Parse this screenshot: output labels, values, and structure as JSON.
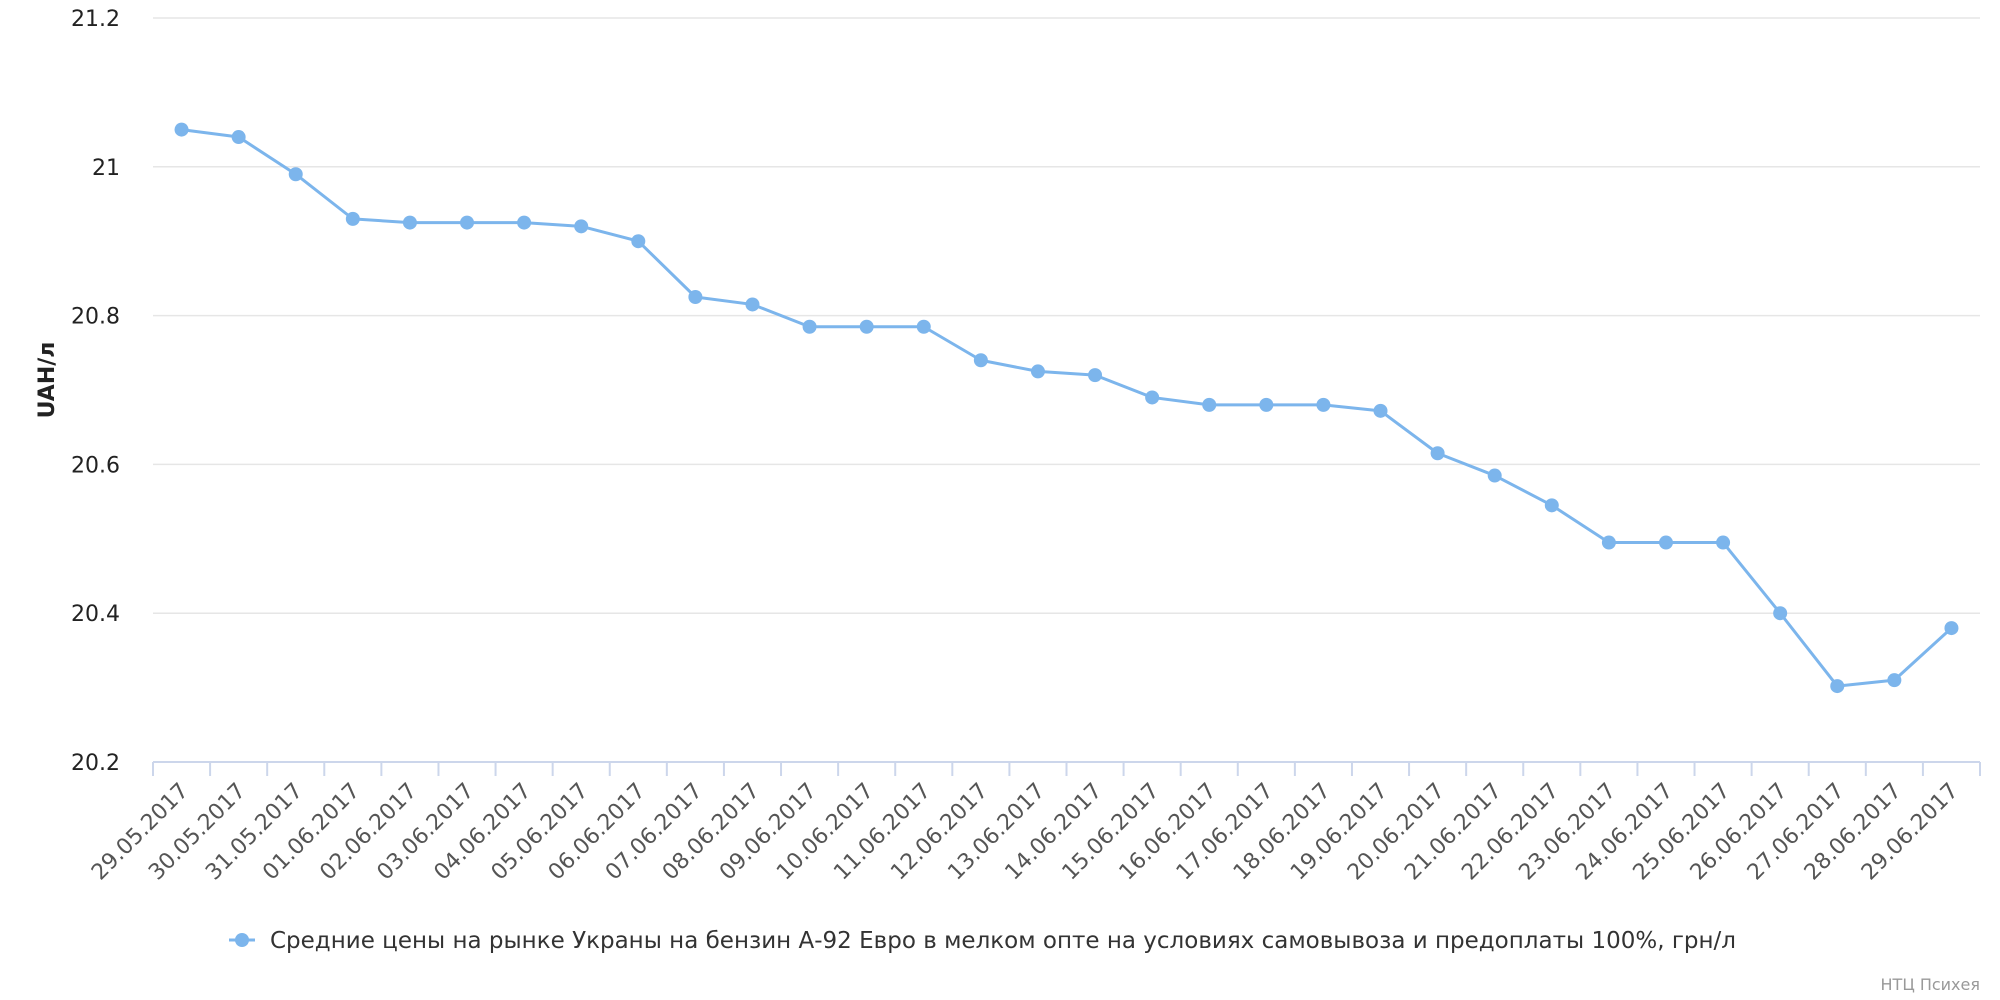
{
  "chart_data": {
    "type": "line",
    "title": "",
    "xlabel": "",
    "ylabel": "UAH/л",
    "ylim": [
      20.2,
      21.2
    ],
    "yticks": [
      20.2,
      20.4,
      20.6,
      20.8,
      21,
      21.2
    ],
    "ytick_labels": [
      "20.2",
      "20.4",
      "20.6",
      "20.8",
      "21",
      "21.2"
    ],
    "grid": true,
    "legend_position": "bottom-center",
    "categories": [
      "29.05.2017",
      "30.05.2017",
      "31.05.2017",
      "01.06.2017",
      "02.06.2017",
      "03.06.2017",
      "04.06.2017",
      "05.06.2017",
      "06.06.2017",
      "07.06.2017",
      "08.06.2017",
      "09.06.2017",
      "10.06.2017",
      "11.06.2017",
      "12.06.2017",
      "13.06.2017",
      "14.06.2017",
      "15.06.2017",
      "16.06.2017",
      "17.06.2017",
      "18.06.2017",
      "19.06.2017",
      "20.06.2017",
      "21.06.2017",
      "22.06.2017",
      "23.06.2017",
      "24.06.2017",
      "25.06.2017",
      "26.06.2017",
      "27.06.2017",
      "28.06.2017",
      "29.06.2017"
    ],
    "series": [
      {
        "name": "Средние цены на рынке Украны на бензин А-92 Евро в мелком опте на условиях самовывоза и предоплаты 100%, грн/л",
        "color": "#7cb5ec",
        "values": [
          21.05,
          21.04,
          20.99,
          20.93,
          20.925,
          20.925,
          20.925,
          20.92,
          20.9,
          20.825,
          20.815,
          20.785,
          20.785,
          20.785,
          20.74,
          20.725,
          20.72,
          20.69,
          20.68,
          20.68,
          20.68,
          20.672,
          20.615,
          20.585,
          20.545,
          20.495,
          20.495,
          20.495,
          20.4,
          20.302,
          20.31,
          20.38
        ]
      }
    ]
  },
  "credits": "НТЦ Психея"
}
